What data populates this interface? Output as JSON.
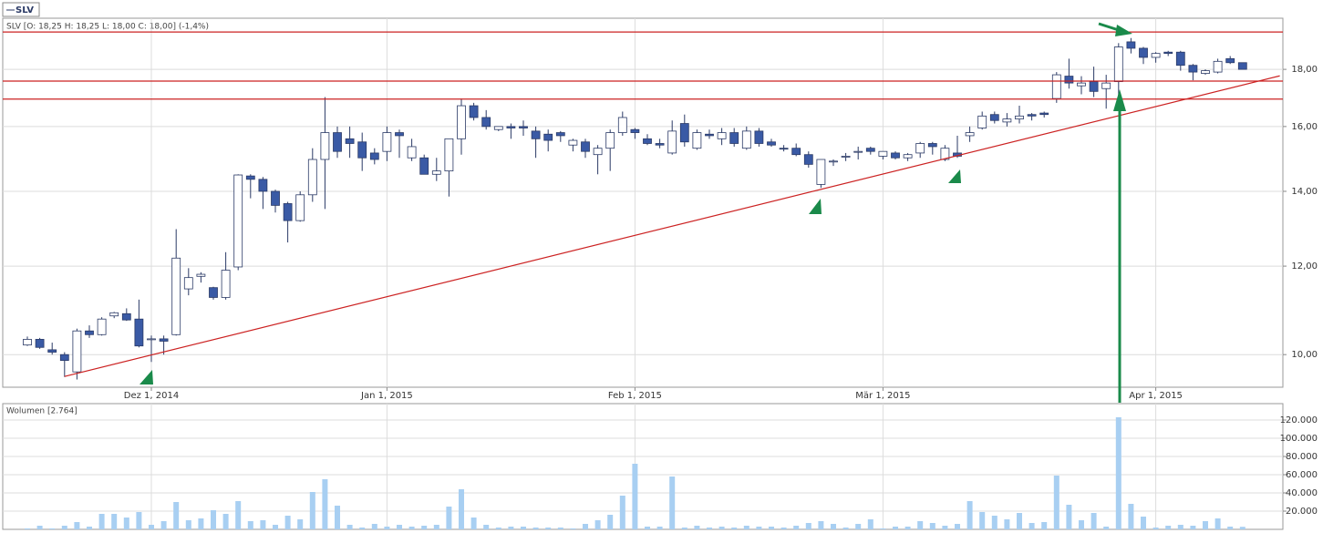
{
  "chart_data": [
    {
      "type": "candlestick",
      "title": "SLV [O: 18,25  H: 18,25  L: 18,00  C: 18,00] (-1,4%)",
      "categories": [
        null,
        null,
        null,
        null,
        null,
        null,
        null,
        null,
        null,
        null,
        "Dez 1, 2014",
        null,
        null,
        null,
        null,
        null,
        null,
        null,
        null,
        null,
        null,
        null,
        null,
        null,
        null,
        null,
        null,
        null,
        null,
        "Jan 1, 2015",
        null,
        null,
        null,
        null,
        null,
        null,
        null,
        null,
        null,
        null,
        null,
        null,
        null,
        null,
        null,
        null,
        null,
        null,
        null,
        "Feb 1, 2015",
        null,
        null,
        null,
        null,
        null,
        null,
        null,
        null,
        null,
        null,
        null,
        null,
        null,
        null,
        null,
        null,
        null,
        null,
        null,
        "Mär 1, 2015",
        null,
        null,
        null,
        null,
        null,
        null,
        null,
        null,
        null,
        null,
        null,
        null,
        null,
        null,
        null,
        null,
        null,
        null,
        null,
        null,
        null,
        "Apr 1, 2015",
        null,
        null,
        null,
        null,
        null,
        null,
        null
      ],
      "series": [
        {
          "name": "SLV",
          "up_color": "#ffffff",
          "down_color": "#3a5aa5",
          "edge_color": "#2b3a66",
          "open": [
            10.2,
            10.32,
            10.1,
            10.0,
            9.65,
            10.5,
            10.42,
            10.83,
            10.88,
            10.76,
            10.33,
            10.33,
            10.42,
            11.45,
            11.75,
            11.48,
            11.25,
            11.98,
            14.45,
            14.35,
            14.0,
            13.65,
            13.18,
            13.9,
            14.95,
            15.8,
            15.6,
            15.5,
            15.15,
            15.2,
            15.8,
            15.0,
            15.0,
            14.5,
            14.6,
            15.6,
            16.7,
            16.3,
            15.9,
            16.0,
            16.0,
            15.85,
            15.75,
            15.8,
            15.4,
            15.5,
            15.1,
            15.3,
            15.8,
            15.9,
            15.6,
            15.45,
            15.15,
            16.1,
            15.3,
            15.75,
            15.6,
            15.8,
            15.3,
            15.85,
            15.5,
            15.3,
            15.3,
            15.1,
            14.2,
            14.9,
            15.05,
            15.2,
            15.3,
            15.05,
            15.15,
            15.0,
            15.15,
            15.45,
            14.95,
            15.15,
            15.7,
            15.95,
            16.4,
            16.15,
            16.25,
            16.4,
            16.45,
            16.95,
            17.75,
            17.4,
            17.55,
            17.3,
            17.55,
            19.05,
            18.8,
            18.45,
            18.65,
            18.65,
            18.15,
            17.85,
            17.9,
            18.4,
            18.25
          ],
          "high": [
            10.38,
            10.35,
            10.25,
            10.05,
            10.55,
            10.62,
            10.8,
            10.92,
            11.0,
            11.2,
            10.4,
            10.4,
            12.95,
            11.95,
            11.85,
            11.5,
            12.35,
            14.5,
            14.5,
            14.42,
            14.05,
            13.7,
            14.0,
            15.3,
            17.0,
            16.0,
            16.0,
            15.8,
            15.3,
            16.0,
            15.9,
            15.6,
            15.1,
            15.0,
            15.6,
            16.95,
            16.8,
            16.55,
            16.0,
            16.1,
            16.2,
            16.0,
            15.9,
            15.85,
            15.6,
            15.6,
            15.4,
            15.9,
            16.5,
            15.95,
            15.75,
            15.6,
            16.2,
            16.4,
            15.9,
            15.9,
            15.95,
            15.95,
            16.0,
            15.95,
            15.6,
            15.4,
            15.45,
            15.2,
            14.95,
            14.95,
            15.15,
            15.35,
            15.35,
            15.2,
            15.2,
            15.15,
            15.5,
            15.5,
            15.4,
            15.7,
            16.0,
            16.5,
            16.5,
            16.45,
            16.7,
            16.45,
            16.5,
            17.9,
            18.4,
            17.75,
            18.1,
            17.8,
            19.0,
            19.2,
            18.85,
            18.65,
            18.7,
            18.7,
            18.2,
            18.0,
            18.4,
            18.5,
            18.25
          ],
          "low": [
            10.18,
            10.12,
            10.0,
            9.55,
            9.5,
            10.35,
            10.4,
            10.78,
            10.72,
            10.15,
            9.85,
            10.0,
            10.4,
            11.3,
            11.6,
            11.2,
            11.2,
            11.9,
            13.8,
            13.5,
            13.4,
            12.6,
            13.15,
            13.7,
            13.5,
            15.0,
            15.0,
            14.6,
            14.8,
            14.9,
            15.0,
            14.9,
            14.5,
            14.3,
            13.85,
            15.1,
            16.2,
            15.9,
            15.85,
            15.6,
            15.7,
            15.0,
            15.2,
            15.5,
            15.2,
            15.0,
            14.5,
            14.6,
            15.7,
            15.6,
            15.4,
            15.3,
            15.1,
            15.35,
            15.25,
            15.6,
            15.4,
            15.35,
            15.25,
            15.35,
            15.35,
            15.2,
            15.05,
            14.7,
            14.1,
            14.75,
            14.9,
            14.95,
            15.1,
            14.95,
            14.95,
            14.9,
            15.0,
            15.1,
            14.9,
            15.0,
            15.5,
            15.9,
            16.1,
            16.0,
            16.1,
            16.2,
            16.3,
            16.8,
            17.3,
            17.1,
            17.0,
            16.6,
            16.8,
            18.6,
            18.2,
            18.25,
            18.5,
            17.95,
            17.6,
            17.8,
            17.85,
            18.2,
            18.0
          ],
          "close": [
            10.32,
            10.15,
            10.05,
            9.88,
            10.5,
            10.42,
            10.76,
            10.9,
            10.74,
            10.18,
            10.33,
            10.28,
            12.2,
            11.72,
            11.8,
            11.25,
            11.9,
            14.48,
            14.35,
            14.0,
            13.6,
            13.18,
            13.9,
            14.95,
            15.8,
            15.2,
            15.45,
            15.0,
            14.95,
            15.8,
            15.7,
            15.35,
            14.5,
            14.6,
            15.6,
            16.7,
            16.3,
            16.0,
            16.0,
            15.95,
            15.95,
            15.6,
            15.55,
            15.7,
            15.55,
            15.2,
            15.3,
            15.8,
            16.3,
            15.8,
            15.45,
            15.4,
            15.85,
            15.5,
            15.8,
            15.7,
            15.8,
            15.45,
            15.85,
            15.45,
            15.4,
            15.28,
            15.1,
            14.8,
            14.95,
            14.9,
            15.05,
            15.2,
            15.2,
            15.2,
            15.0,
            15.1,
            15.45,
            15.35,
            15.3,
            15.05,
            15.8,
            16.35,
            16.2,
            16.25,
            16.35,
            16.35,
            16.4,
            17.8,
            17.5,
            17.5,
            17.2,
            17.5,
            18.85,
            18.8,
            18.45,
            18.6,
            18.6,
            18.15,
            17.9,
            17.95,
            18.3,
            18.25,
            18.0
          ]
        }
      ],
      "ylim": [
        9.35,
        20.0
      ],
      "log_scale": true,
      "grid": true,
      "yticks": [
        {
          "value": 10,
          "label": "10,00"
        },
        {
          "value": 12,
          "label": "12,00"
        },
        {
          "value": 14,
          "label": "14,00"
        },
        {
          "value": 16,
          "label": "16,00"
        },
        {
          "value": 18,
          "label": "18,00"
        }
      ],
      "horizontal_lines": [
        19.44,
        17.57,
        16.93
      ],
      "line_color": "#cc2222",
      "trendline": {
        "x": [
          3,
          101
        ],
        "y": [
          9.56,
          17.76
        ]
      }
    },
    {
      "type": "bar",
      "title": "Wolumen [2.764]",
      "color": "#a8cff2",
      "values": [
        1000,
        4000,
        1000,
        4000,
        8000,
        3000,
        17000,
        17000,
        13000,
        19000,
        5000,
        9000,
        30000,
        10000,
        12000,
        21000,
        17000,
        31000,
        9000,
        10000,
        5000,
        15000,
        11000,
        41000,
        55000,
        26000,
        5000,
        2000,
        6000,
        3000,
        5000,
        3000,
        4000,
        5000,
        25000,
        44000,
        13000,
        5000,
        2000,
        3000,
        3000,
        2000,
        2000,
        2000,
        1000,
        6000,
        10000,
        16000,
        37000,
        72000,
        3000,
        3000,
        58000,
        2000,
        4000,
        2000,
        3000,
        2000,
        4000,
        3000,
        3000,
        2000,
        4000,
        7000,
        9000,
        6000,
        2000,
        6000,
        11000,
        1000,
        3000,
        3000,
        9000,
        7000,
        4000,
        6000,
        31000,
        19000,
        15000,
        11000,
        18000,
        7000,
        8000,
        59000,
        27000,
        10000,
        18000,
        3000,
        123000,
        28000,
        14000,
        2000,
        4000,
        5000,
        4000,
        9000,
        12000,
        3000,
        2764
      ],
      "ylim": [
        0,
        138000
      ],
      "yticks": [
        {
          "value": 20000,
          "label": "20.000"
        },
        {
          "value": 40000,
          "label": "40.000"
        },
        {
          "value": 60000,
          "label": "60.000"
        },
        {
          "value": 80000,
          "label": "80.000"
        },
        {
          "value": 100000,
          "label": "100.000"
        },
        {
          "value": 120000,
          "label": "120.000"
        }
      ]
    }
  ]
}
